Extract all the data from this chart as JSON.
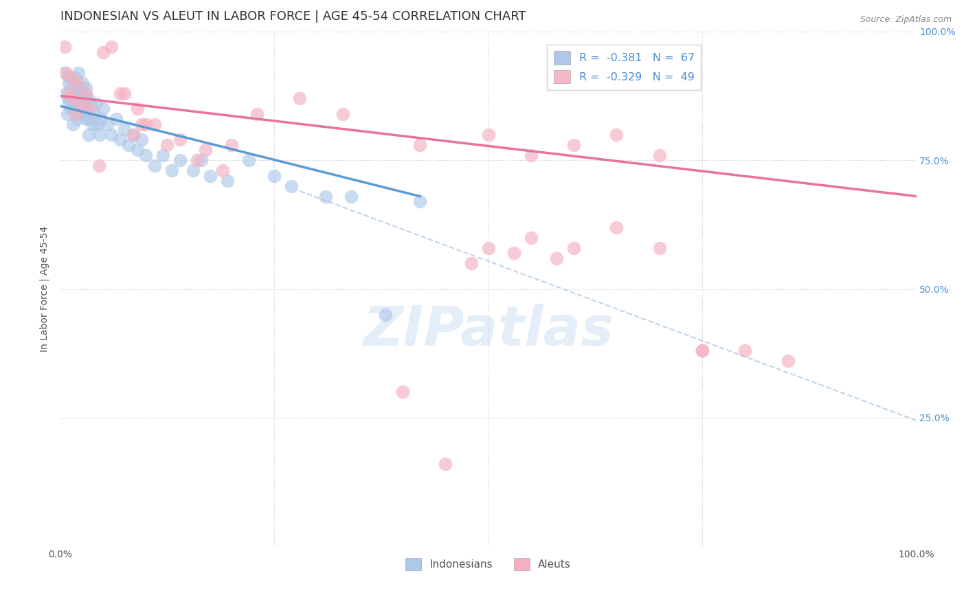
{
  "title": "INDONESIAN VS ALEUT IN LABOR FORCE | AGE 45-54 CORRELATION CHART",
  "source": "Source: ZipAtlas.com",
  "ylabel": "In Labor Force | Age 45-54",
  "watermark": "ZIPatlas",
  "xlim": [
    0.0,
    1.0
  ],
  "ylim": [
    0.0,
    1.0
  ],
  "legend_entries": [
    {
      "label": "R =  -0.381   N =  67",
      "color": "#adc8e8"
    },
    {
      "label": "R =  -0.329   N =  49",
      "color": "#f4b8c8"
    }
  ],
  "indonesian_color": "#adc8e8",
  "aleut_color": "#f4b0c0",
  "indonesian_line_color": "#5b9bd5",
  "aleut_line_color": "#e8729a",
  "dashed_line_color": "#b8cfe8",
  "background_color": "#ffffff",
  "grid_color": "#cccccc",
  "title_fontsize": 13,
  "axis_label_fontsize": 10,
  "tick_fontsize": 10,
  "indonesian_scatter": {
    "x": [
      0.005,
      0.007,
      0.008,
      0.009,
      0.01,
      0.01,
      0.011,
      0.012,
      0.013,
      0.014,
      0.015,
      0.015,
      0.016,
      0.017,
      0.018,
      0.018,
      0.019,
      0.02,
      0.02,
      0.021,
      0.022,
      0.023,
      0.024,
      0.025,
      0.026,
      0.027,
      0.028,
      0.029,
      0.03,
      0.03,
      0.031,
      0.032,
      0.033,
      0.034,
      0.035,
      0.038,
      0.04,
      0.042,
      0.044,
      0.046,
      0.048,
      0.05,
      0.055,
      0.06,
      0.065,
      0.07,
      0.075,
      0.08,
      0.085,
      0.09,
      0.095,
      0.1,
      0.11,
      0.12,
      0.13,
      0.14,
      0.155,
      0.165,
      0.175,
      0.195,
      0.22,
      0.25,
      0.27,
      0.31,
      0.34,
      0.38,
      0.42
    ],
    "y": [
      0.92,
      0.88,
      0.84,
      0.87,
      0.9,
      0.86,
      0.91,
      0.85,
      0.89,
      0.87,
      0.82,
      0.86,
      0.9,
      0.88,
      0.91,
      0.85,
      0.87,
      0.89,
      0.83,
      0.92,
      0.86,
      0.88,
      0.84,
      0.87,
      0.9,
      0.85,
      0.88,
      0.86,
      0.89,
      0.83,
      0.84,
      0.87,
      0.8,
      0.83,
      0.86,
      0.82,
      0.84,
      0.86,
      0.82,
      0.8,
      0.83,
      0.85,
      0.82,
      0.8,
      0.83,
      0.79,
      0.81,
      0.78,
      0.8,
      0.77,
      0.79,
      0.76,
      0.74,
      0.76,
      0.73,
      0.75,
      0.73,
      0.75,
      0.72,
      0.71,
      0.75,
      0.72,
      0.7,
      0.68,
      0.68,
      0.45,
      0.67
    ]
  },
  "aleut_scatter": {
    "x": [
      0.005,
      0.007,
      0.01,
      0.012,
      0.015,
      0.018,
      0.02,
      0.025,
      0.03,
      0.035,
      0.05,
      0.07,
      0.09,
      0.11,
      0.14,
      0.17,
      0.2,
      0.23,
      0.28,
      0.33,
      0.06,
      0.095,
      0.125,
      0.16,
      0.19,
      0.085,
      0.1,
      0.075,
      0.045,
      0.42,
      0.5,
      0.55,
      0.6,
      0.65,
      0.7,
      0.75,
      0.8,
      0.85,
      0.5,
      0.55,
      0.6,
      0.65,
      0.7,
      0.75,
      0.48,
      0.53,
      0.58,
      0.4,
      0.45
    ],
    "y": [
      0.97,
      0.92,
      0.88,
      0.91,
      0.87,
      0.84,
      0.9,
      0.86,
      0.88,
      0.85,
      0.96,
      0.88,
      0.85,
      0.82,
      0.79,
      0.77,
      0.78,
      0.84,
      0.87,
      0.84,
      0.97,
      0.82,
      0.78,
      0.75,
      0.73,
      0.8,
      0.82,
      0.88,
      0.74,
      0.78,
      0.8,
      0.76,
      0.78,
      0.8,
      0.76,
      0.38,
      0.38,
      0.36,
      0.58,
      0.6,
      0.58,
      0.62,
      0.58,
      0.38,
      0.55,
      0.57,
      0.56,
      0.3,
      0.16
    ]
  },
  "blue_line": {
    "x0": 0.0,
    "x1": 0.42,
    "y0": 0.855,
    "y1": 0.68
  },
  "pink_line": {
    "x0": 0.0,
    "x1": 1.0,
    "y0": 0.875,
    "y1": 0.68
  },
  "dashed_line": {
    "x0": 0.28,
    "x1": 1.0,
    "y0": 0.69,
    "y1": 0.245
  }
}
